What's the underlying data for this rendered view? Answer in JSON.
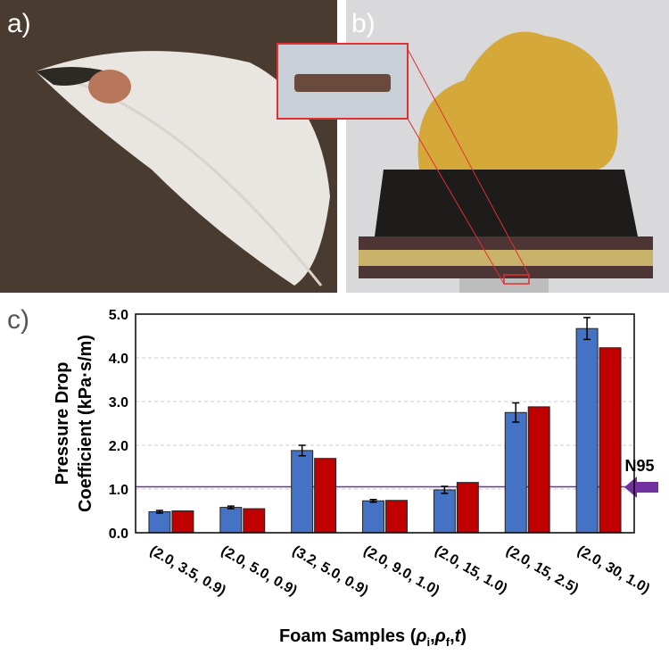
{
  "panel_labels": {
    "a": "a)",
    "b": "b)",
    "c": "c)"
  },
  "chart_data": {
    "type": "bar",
    "y_label": [
      "Pressure Drop",
      "Coefficient (kPa·s/m)"
    ],
    "x_label": [
      "Foam Samples (",
      "ρ",
      "i",
      ",",
      "ρ",
      "f",
      ",",
      "t",
      ")"
    ],
    "categories": [
      "(2.0, 3.5, 0.9)",
      "(2.0, 5.0, 0.9)",
      "(3.2, 5.0, 0.9)",
      "(2.0, 9.0, 1.0)",
      "(2.0, 15, 1.0)",
      "(2.0, 15, 2.5)",
      "(2.0, 30, 1.0)"
    ],
    "series": [
      {
        "color": "#4472c4",
        "values": [
          0.48,
          0.58,
          1.88,
          0.73,
          0.98,
          2.75,
          4.67
        ],
        "errors": [
          0.03,
          0.03,
          0.12,
          0.03,
          0.08,
          0.22,
          0.25
        ]
      },
      {
        "color": "#c00000",
        "values": [
          0.5,
          0.55,
          1.7,
          0.74,
          1.15,
          2.88,
          4.23
        ]
      }
    ],
    "ylim": [
      0,
      5
    ],
    "yticks": [
      {
        "value": 0,
        "label": "0.0"
      },
      {
        "value": 1,
        "label": "1.0"
      },
      {
        "value": 2,
        "label": "2.0"
      },
      {
        "value": 3,
        "label": "3.0"
      },
      {
        "value": 4,
        "label": "4.0"
      },
      {
        "value": 5,
        "label": "5.0"
      }
    ],
    "grid": true,
    "reference": {
      "label": "N95",
      "value": 1.05,
      "color": "#7030a0"
    }
  }
}
